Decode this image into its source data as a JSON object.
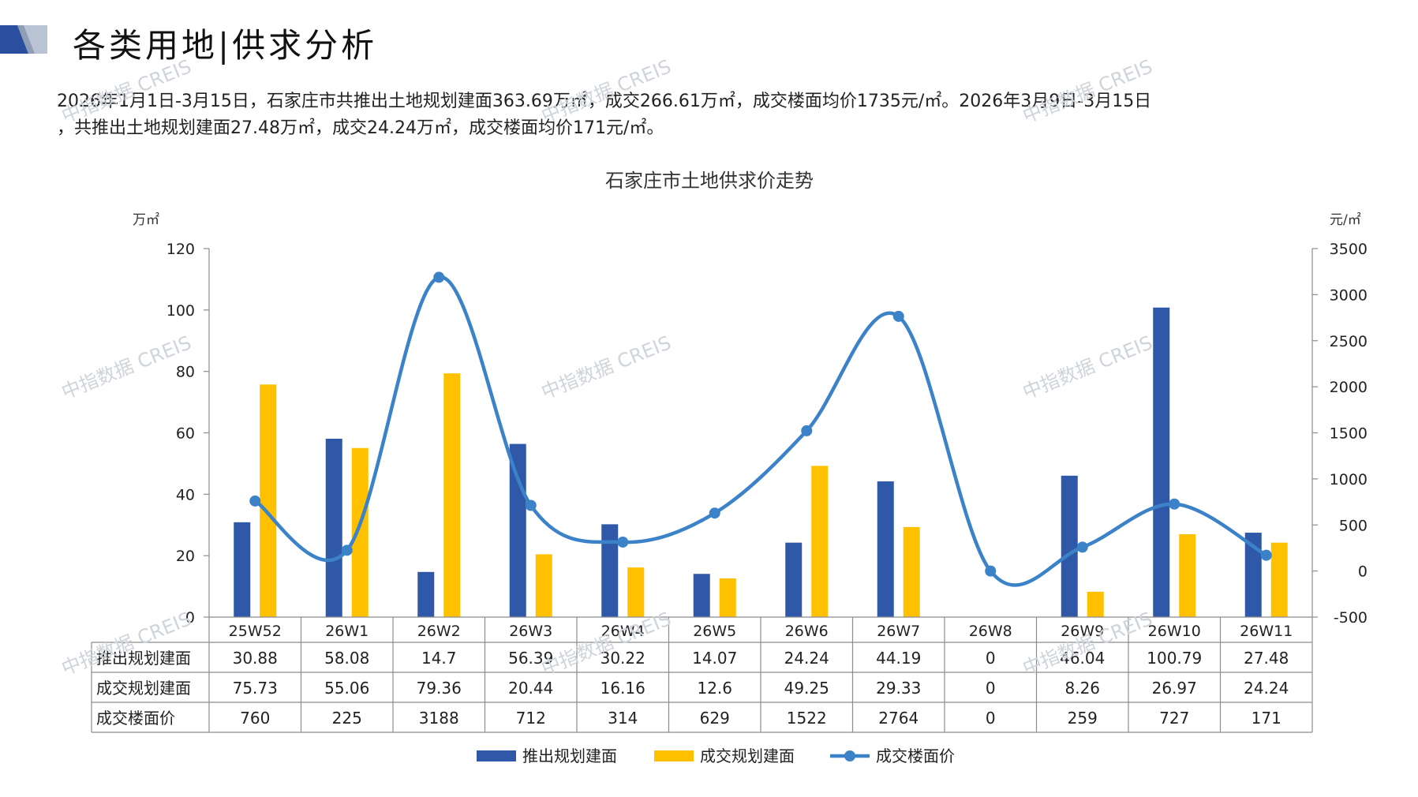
{
  "header": {
    "title": "各类用地|供求分析",
    "colors": {
      "accent_dark": "#2a4f9e",
      "accent_light": "#b9c3d3"
    }
  },
  "summary": {
    "line1": "2026年1月1日-3月15日，石家庄市共推出土地规划建面363.69万㎡，成交266.61万㎡，成交楼面均价1735元/㎡。2026年3月9日-3月15日",
    "line2": "，共推出土地规划建面27.48万㎡，成交24.24万㎡，成交楼面均价171元/㎡。"
  },
  "watermark": "中指数据 CREIS",
  "chart_data": {
    "type": "bar",
    "title": "石家庄市土地供求价走势",
    "left_unit": "万㎡",
    "right_unit": "元/㎡",
    "categories": [
      "25W52",
      "26W1",
      "26W2",
      "26W3",
      "26W4",
      "26W5",
      "26W6",
      "26W7",
      "26W8",
      "26W9",
      "26W10",
      "26W11"
    ],
    "ylim_left": [
      0,
      120
    ],
    "yticks_left": [
      0,
      20,
      40,
      60,
      80,
      100,
      120
    ],
    "ylim_right": [
      -500,
      3500
    ],
    "yticks_right": [
      -500,
      0,
      500,
      1000,
      1500,
      2000,
      2500,
      3000,
      3500
    ],
    "series": [
      {
        "name": "推出规划建面",
        "type": "bar",
        "axis": "left",
        "color": "#2f58a8",
        "values": [
          30.88,
          58.08,
          14.7,
          56.39,
          30.22,
          14.07,
          24.24,
          44.19,
          0,
          46.04,
          100.79,
          27.48
        ],
        "labels": [
          "30.88",
          "58.08",
          "14.7",
          "56.39",
          "30.22",
          "14.07",
          "24.24",
          "44.19",
          "0",
          "46.04",
          "100.79",
          "27.48"
        ]
      },
      {
        "name": "成交规划建面",
        "type": "bar",
        "axis": "left",
        "color": "#ffc000",
        "values": [
          75.73,
          55.06,
          79.36,
          20.44,
          16.16,
          12.6,
          49.25,
          29.33,
          0,
          8.26,
          26.97,
          24.24
        ],
        "labels": [
          "75.73",
          "55.06",
          "79.36",
          "20.44",
          "16.16",
          "12.6",
          "49.25",
          "29.33",
          "0",
          "8.26",
          "26.97",
          "24.24"
        ]
      },
      {
        "name": "成交楼面价",
        "type": "line",
        "axis": "right",
        "color": "#3b82c8",
        "values": [
          760,
          225,
          3188,
          712,
          314,
          629,
          1522,
          2764,
          0,
          259,
          727,
          171
        ],
        "labels": [
          "760",
          "225",
          "3188",
          "712",
          "314",
          "629",
          "1522",
          "2764",
          "0",
          "259",
          "727",
          "171"
        ]
      }
    ],
    "legend_position": "bottom",
    "grid": false
  }
}
